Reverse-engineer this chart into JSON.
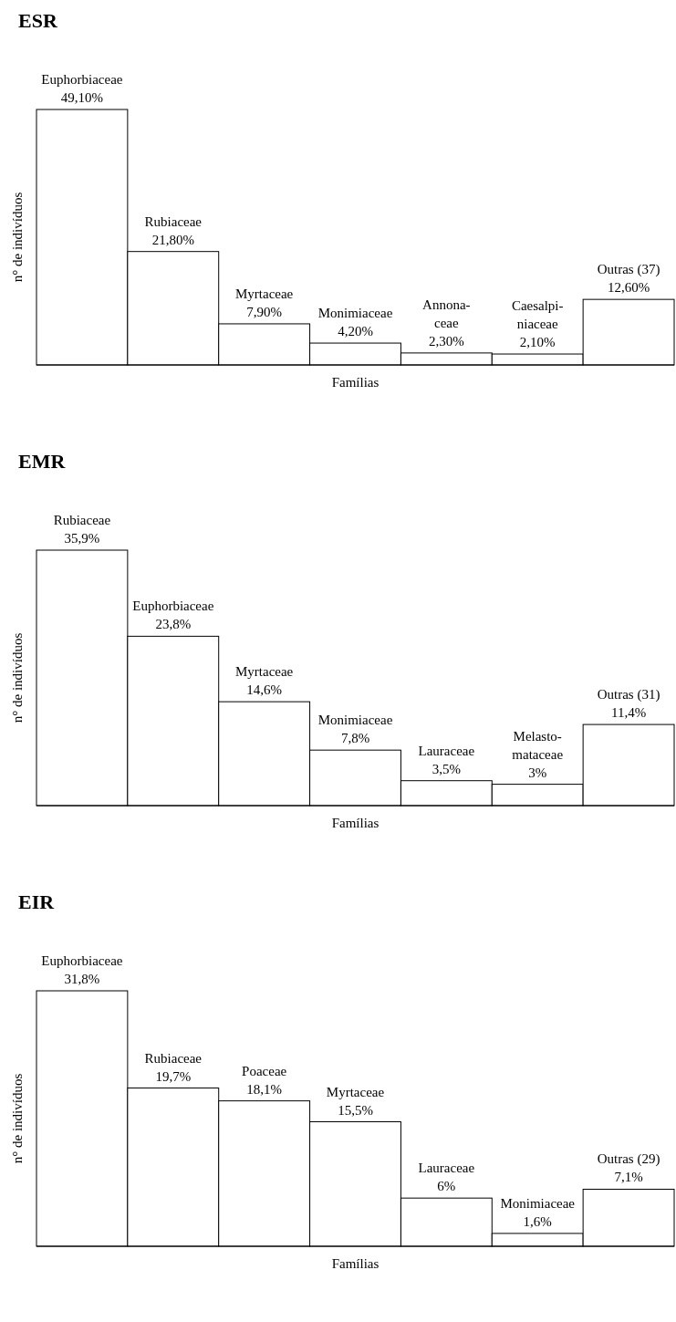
{
  "chart_data": [
    {
      "type": "bar",
      "title": "ESR",
      "xlabel": "Famílias",
      "ylabel": "n° de indivíduos",
      "color": "#ffffff",
      "categories": [
        "Euphorbiaceae",
        "Rubiaceae",
        "Myrtaceae",
        "Monimiaceae",
        "Annona-ceae",
        "Caesalpi-niaceae",
        "Outras (37)"
      ],
      "values": [
        49.1,
        21.8,
        7.9,
        4.2,
        2.3,
        2.1,
        12.6
      ],
      "value_labels": [
        "49,10%",
        "21,80%",
        "7,90%",
        "4,20%",
        "2,30%",
        "2,10%",
        "12,60%"
      ]
    },
    {
      "type": "bar",
      "title": "EMR",
      "xlabel": "Famílias",
      "ylabel": "n° de indivíduos",
      "color": "#ffffff",
      "categories": [
        "Rubiaceae",
        "Euphorbiaceae",
        "Myrtaceae",
        "Monimiaceae",
        "Lauraceae",
        "Melasto-mataceae",
        "Outras (31)"
      ],
      "values": [
        35.9,
        23.8,
        14.6,
        7.8,
        3.5,
        3,
        11.4
      ],
      "value_labels": [
        "35,9%",
        "23,8%",
        "14,6%",
        "7,8%",
        "3,5%",
        "3%",
        "11,4%"
      ]
    },
    {
      "type": "bar",
      "title": "EIR",
      "xlabel": "Famílias",
      "ylabel": "n° de indivíduos",
      "color": "#ffffff",
      "categories": [
        "Euphorbiaceae",
        "Rubiaceae",
        "Poaceae",
        "Myrtaceae",
        "Lauraceae",
        "Monimiaceae",
        "Outras (29)"
      ],
      "values": [
        31.8,
        19.7,
        18.1,
        15.5,
        6,
        1.6,
        7.1
      ],
      "value_labels": [
        "31,8%",
        "19,7%",
        "18,1%",
        "15,5%",
        "6%",
        "1,6%",
        "7,1%"
      ]
    }
  ]
}
